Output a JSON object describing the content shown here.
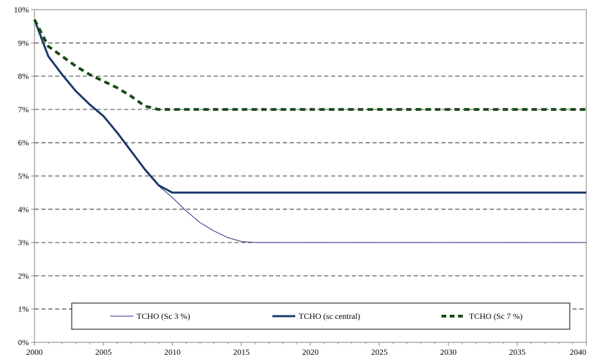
{
  "chart_data": {
    "type": "line",
    "title": "",
    "xlabel": "",
    "ylabel": "",
    "xlim": [
      2000,
      2040
    ],
    "ylim": [
      0,
      10
    ],
    "x_ticks": [
      2000,
      2005,
      2010,
      2015,
      2020,
      2025,
      2030,
      2035,
      2040
    ],
    "x_tick_labels": [
      "2000",
      "2005",
      "2010",
      "2015",
      "2020",
      "2025",
      "2030",
      "2035",
      "2040"
    ],
    "y_ticks": [
      0,
      1,
      2,
      3,
      4,
      5,
      6,
      7,
      8,
      9,
      10
    ],
    "y_tick_labels": [
      "0%",
      "1%",
      "2%",
      "3%",
      "4%",
      "5%",
      "6%",
      "7%",
      "8%",
      "9%",
      "10%"
    ],
    "grid": "horizontal dashed",
    "legend_position": "bottom",
    "series": [
      {
        "name": "TCHO (Sc 3 %)",
        "color": "#1f2a7a",
        "style": "thin-solid",
        "x": [
          2000,
          2001,
          2002,
          2003,
          2004,
          2005,
          2006,
          2007,
          2008,
          2009,
          2010,
          2011,
          2012,
          2013,
          2014,
          2015,
          2016,
          2020,
          2025,
          2030,
          2035,
          2040
        ],
        "y": [
          9.7,
          8.6,
          8.05,
          7.55,
          7.15,
          6.8,
          6.3,
          5.75,
          5.2,
          4.7,
          4.35,
          3.95,
          3.6,
          3.35,
          3.15,
          3.03,
          3.0,
          3.0,
          3.0,
          3.0,
          3.0,
          3.0
        ]
      },
      {
        "name": "TCHO (sc central)",
        "color": "#1b3a6b",
        "style": "thick-solid",
        "x": [
          2000,
          2001,
          2002,
          2003,
          2004,
          2005,
          2006,
          2007,
          2008,
          2009,
          2010,
          2015,
          2020,
          2025,
          2030,
          2035,
          2040
        ],
        "y": [
          9.7,
          8.6,
          8.05,
          7.55,
          7.15,
          6.8,
          6.3,
          5.75,
          5.2,
          4.72,
          4.5,
          4.5,
          4.5,
          4.5,
          4.5,
          4.5,
          4.5
        ]
      },
      {
        "name": "TCHO (Sc 7 %)",
        "color": "#1a4a1a",
        "style": "thick-dashed",
        "x": [
          2000,
          2001,
          2002,
          2003,
          2004,
          2005,
          2006,
          2007,
          2008,
          2009,
          2010,
          2015,
          2020,
          2025,
          2030,
          2035,
          2040
        ],
        "y": [
          9.7,
          8.9,
          8.6,
          8.3,
          8.05,
          7.85,
          7.65,
          7.4,
          7.1,
          7.0,
          7.0,
          7.0,
          7.0,
          7.0,
          7.0,
          7.0,
          7.0
        ]
      }
    ]
  }
}
